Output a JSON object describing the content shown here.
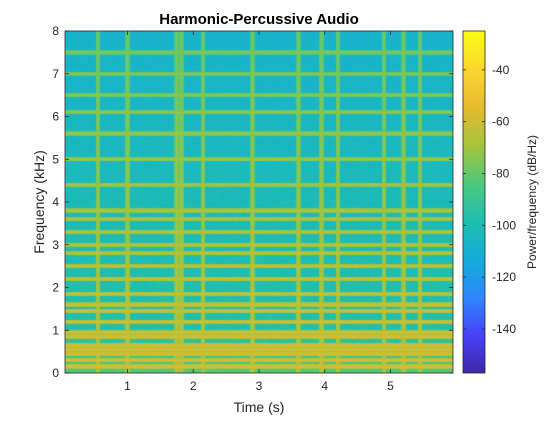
{
  "chart_data": {
    "type": "heatmap",
    "title": "Harmonic-Percussive Audio",
    "xlabel": "Time (s)",
    "ylabel": "Frequency (kHz)",
    "colorbar_label": "Power/frequency (dB/Hz)",
    "xlim": [
      0.05,
      5.95
    ],
    "ylim": [
      0,
      8
    ],
    "clim": [
      -157,
      -25
    ],
    "x_ticks": [
      1,
      2,
      3,
      4,
      5
    ],
    "y_ticks": [
      0,
      1,
      2,
      3,
      4,
      5,
      6,
      7,
      8
    ],
    "colorbar_ticks": [
      -40,
      -60,
      -80,
      -100,
      -120,
      -140
    ],
    "colormap": [
      "#3e26a8",
      "#4743f8",
      "#2e88fc",
      "#15adda",
      "#1ebeb0",
      "#4fc97c",
      "#a6c43a",
      "#e8ba30",
      "#fcd82e",
      "#f9fb15"
    ],
    "percussive_onsets_s": [
      0.55,
      1.0,
      1.75,
      1.82,
      2.15,
      2.9,
      3.6,
      3.95,
      4.2,
      4.9,
      5.2,
      5.45
    ],
    "harmonic_partials_khz": [
      0.15,
      0.3,
      0.45,
      0.55,
      0.65,
      0.85,
      0.95,
      1.2,
      1.45,
      1.6,
      1.85,
      2.2,
      2.5,
      2.8,
      3.0,
      3.3,
      3.6,
      3.8,
      4.4,
      5.0,
      5.6,
      6.1,
      6.5,
      7.0,
      7.5
    ],
    "background_level_db": -95,
    "grid": false
  }
}
